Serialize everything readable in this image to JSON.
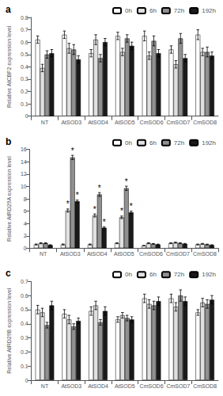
{
  "chart_data": [
    {
      "type": "bar",
      "title": "a",
      "ylabel": "Relative AtCBF2 expression level",
      "categories": [
        "NT",
        "AtSOD3",
        "AtSOD4",
        "AtSOD5",
        "CmSOD6",
        "CmSOD7",
        "CmSOD8"
      ],
      "series": [
        {
          "name": "0h",
          "color": "white",
          "values": [
            0.62,
            0.66,
            0.51,
            0.65,
            0.65,
            0.54,
            0.66
          ],
          "errors": [
            0.03,
            0.03,
            0.03,
            0.03,
            0.04,
            0.03,
            0.04
          ]
        },
        {
          "name": "6h",
          "color": "#e0e0e0",
          "values": [
            0.39,
            0.55,
            0.62,
            0.52,
            0.49,
            0.42,
            0.52
          ],
          "errors": [
            0.03,
            0.04,
            0.04,
            0.03,
            0.03,
            0.03,
            0.03
          ]
        },
        {
          "name": "72h",
          "color": "#909090",
          "values": [
            0.5,
            0.54,
            0.47,
            0.63,
            0.61,
            0.63,
            0.52
          ],
          "errors": [
            0.03,
            0.04,
            0.03,
            0.03,
            0.04,
            0.04,
            0.04
          ]
        },
        {
          "name": "192h",
          "color": "#1a1a1a",
          "values": [
            0.51,
            0.46,
            0.6,
            0.57,
            0.51,
            0.47,
            0.49
          ],
          "errors": [
            0.03,
            0.03,
            0.03,
            0.03,
            0.03,
            0.03,
            0.03
          ]
        }
      ],
      "ylim": [
        0,
        0.8
      ],
      "yticks": [
        0,
        0.1,
        0.2,
        0.3,
        0.4,
        0.5,
        0.6,
        0.7,
        0.8
      ],
      "grid": false,
      "legend": "upper right"
    },
    {
      "type": "bar",
      "title": "b",
      "ylabel": "Relative AtRD29A expression level",
      "categories": [
        "NT",
        "AtSOD3",
        "AtSOD4",
        "AtSOD5",
        "CmSOD6",
        "CmSOD7",
        "CmSOD8"
      ],
      "series": [
        {
          "name": "0h",
          "color": "white",
          "values": [
            0.6,
            0.6,
            0.6,
            0.8,
            0.4,
            0.8,
            0.6
          ],
          "errors": [
            0.08,
            0.08,
            0.08,
            0.08,
            0.05,
            0.08,
            0.07
          ]
        },
        {
          "name": "6h",
          "color": "#e0e0e0",
          "values": [
            0.8,
            6.1,
            5.3,
            5.0,
            0.8,
            0.9,
            0.7
          ],
          "errors": [
            0.08,
            0.25,
            0.25,
            0.2,
            0.08,
            0.08,
            0.07
          ]
        },
        {
          "name": "72h",
          "color": "#909090",
          "values": [
            0.8,
            14.7,
            8.7,
            9.7,
            0.7,
            0.8,
            0.6
          ],
          "errors": [
            0.08,
            0.35,
            0.3,
            0.35,
            0.06,
            0.08,
            0.06
          ]
        },
        {
          "name": "192h",
          "color": "#1a1a1a",
          "values": [
            0.5,
            7.6,
            3.3,
            5.8,
            0.6,
            0.7,
            0.5
          ],
          "errors": [
            0.06,
            0.2,
            0.15,
            0.2,
            0.06,
            0.07,
            0.06
          ]
        }
      ],
      "ylim": [
        0,
        16
      ],
      "yticks": [
        0,
        2,
        4,
        6,
        8,
        10,
        12,
        14,
        16
      ],
      "grid": false,
      "legend": "upper right",
      "annotations": [
        {
          "text": "*",
          "category": "AtSOD3",
          "series": "6h"
        },
        {
          "text": "*",
          "category": "AtSOD3",
          "series": "72h"
        },
        {
          "text": "*",
          "category": "AtSOD3",
          "series": "192h"
        },
        {
          "text": "*",
          "category": "AtSOD4",
          "series": "6h"
        },
        {
          "text": "*",
          "category": "AtSOD4",
          "series": "72h"
        },
        {
          "text": "*",
          "category": "AtSOD4",
          "series": "192h"
        },
        {
          "text": "*",
          "category": "AtSOD5",
          "series": "6h"
        },
        {
          "text": "*",
          "category": "AtSOD5",
          "series": "72h"
        },
        {
          "text": "*",
          "category": "AtSOD5",
          "series": "192h"
        }
      ]
    },
    {
      "type": "bar",
      "title": "c",
      "ylabel": "Relative AtRD29B expression level",
      "categories": [
        "NT",
        "AtSOD3",
        "AtSOD4",
        "AtSOD5",
        "CmSOD6",
        "CmSOD7",
        "CmSOD8"
      ],
      "series": [
        {
          "name": "0h",
          "color": "white",
          "values": [
            0.5,
            0.47,
            0.49,
            0.43,
            0.58,
            0.58,
            0.48
          ],
          "errors": [
            0.03,
            0.03,
            0.03,
            0.02,
            0.03,
            0.03,
            0.02
          ]
        },
        {
          "name": "6h",
          "color": "#e0e0e0",
          "values": [
            0.48,
            0.43,
            0.53,
            0.46,
            0.54,
            0.52,
            0.55
          ],
          "errors": [
            0.03,
            0.03,
            0.03,
            0.02,
            0.03,
            0.03,
            0.03
          ]
        },
        {
          "name": "72h",
          "color": "#909090",
          "values": [
            0.39,
            0.38,
            0.41,
            0.44,
            0.53,
            0.6,
            0.54
          ],
          "errors": [
            0.02,
            0.02,
            0.02,
            0.02,
            0.03,
            0.04,
            0.03
          ]
        },
        {
          "name": "192h",
          "color": "#1a1a1a",
          "values": [
            0.53,
            0.42,
            0.49,
            0.43,
            0.56,
            0.56,
            0.57
          ],
          "errors": [
            0.03,
            0.02,
            0.03,
            0.02,
            0.03,
            0.03,
            0.03
          ]
        }
      ],
      "ylim": [
        0,
        0.7
      ],
      "yticks": [
        0,
        0.1,
        0.2,
        0.3,
        0.4,
        0.5,
        0.6,
        0.7
      ],
      "grid": false,
      "legend": "upper right"
    }
  ]
}
